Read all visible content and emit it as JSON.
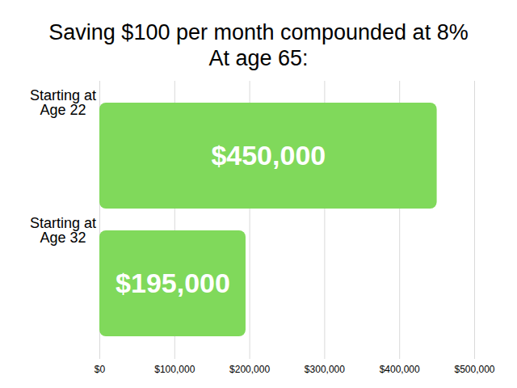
{
  "chart_data": {
    "type": "bar",
    "orientation": "horizontal",
    "title": "Saving $100 per month compounded at 8%",
    "subtitle": "At age 65:",
    "categories": [
      "Starting at\nAge 22",
      "Starting at\nAge 32"
    ],
    "values": [
      450000,
      195000
    ],
    "value_labels": [
      "$450,000",
      "$195,000"
    ],
    "data_labels": true,
    "color": "#80d95b",
    "xlim": [
      0,
      500000
    ],
    "xticks": [
      {
        "value": 0,
        "label": "$0"
      },
      {
        "value": 100000,
        "label": "$100,000"
      },
      {
        "value": 200000,
        "label": "$200,000"
      },
      {
        "value": 300000,
        "label": "$300,000"
      },
      {
        "value": 400000,
        "label": "$400,000"
      },
      {
        "value": 500000,
        "label": "$500,000"
      }
    ],
    "grid": true
  }
}
